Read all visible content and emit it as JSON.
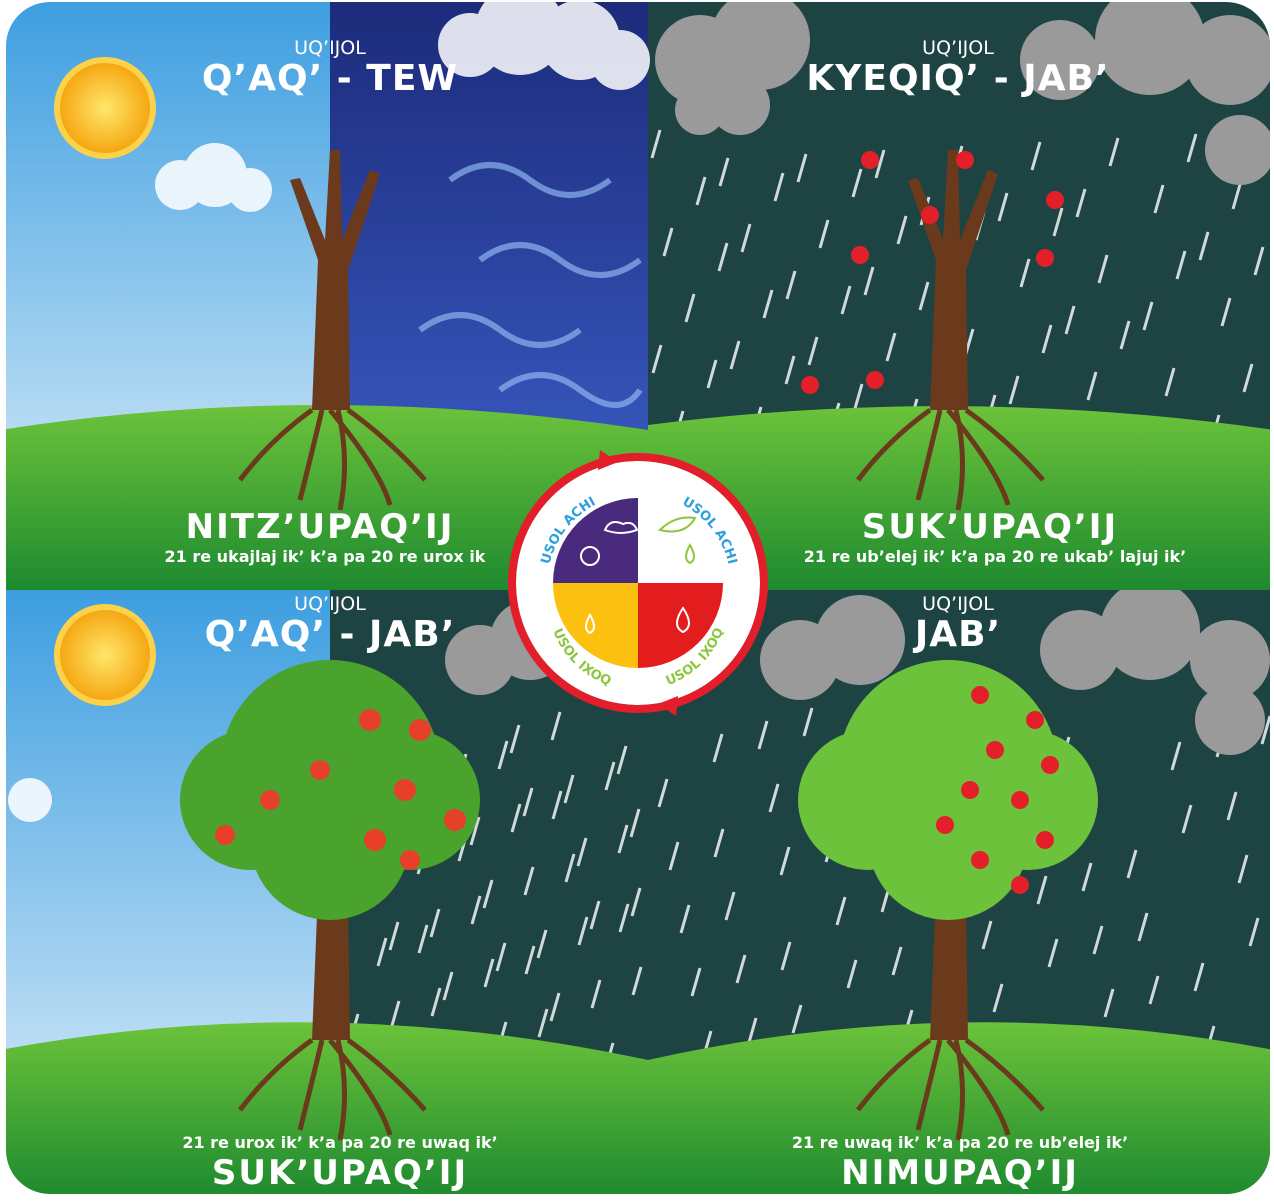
{
  "panels": [
    {
      "label": "UQ’IJOL",
      "title": "Q’AQ’ - TEW",
      "season": "NITZ’UPAQ’IJ",
      "dates": "21 re ukajlaj ik’ k’a pa 20 re urox ik"
    },
    {
      "label": "UQ’IJOL",
      "title": "KYEQIQ’ - JAB’",
      "season": "SUK’UPAQ’IJ",
      "dates": "21 re ub’elej ik’ k’a pa 20 re ukab’ lajuj ik’"
    },
    {
      "label": "UQ’IJOL",
      "title": "Q’AQ’ - JAB’",
      "season": "SUK’UPAQ’IJ",
      "dates": "21 re urox ik’ k’a pa 20 re uwaq ik’"
    },
    {
      "label": "UQ’IJOL",
      "title": "JAB’",
      "season": "NIMUPAQ’IJ",
      "dates": "21 re uwaq ik’ k’a pa 20 re ub’elej ik’"
    }
  ],
  "wheel": {
    "labels": [
      "USOL ACHI",
      "USOL ACHI",
      "USOL IXOQ",
      "USOL IXOQ"
    ]
  }
}
